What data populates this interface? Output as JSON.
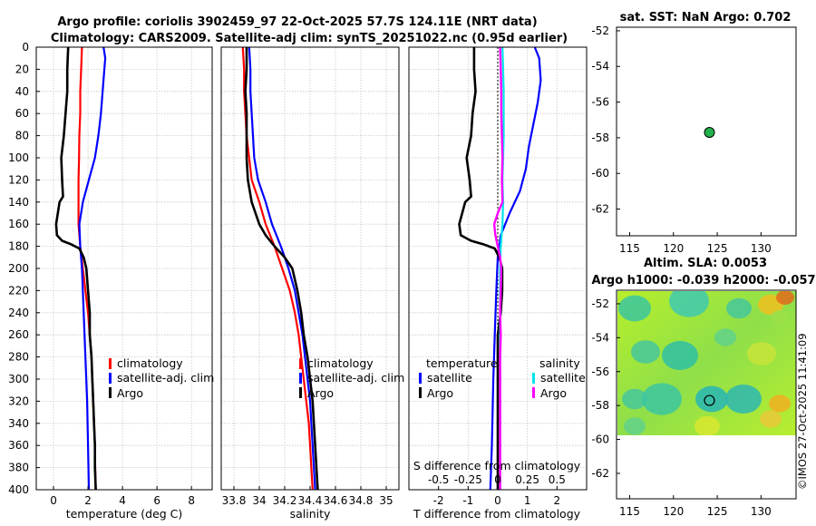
{
  "titles": {
    "line1": "Argo profile: coriolis 3902459_97 22-Oct-2025 57.7S 124.11E (NRT data)",
    "line2": "Climatology: CARS2009. Satellite-adj clim: synTS_20251022.nc (0.95d earlier)"
  },
  "colors": {
    "climatology": "#ff0000",
    "satellite": "#0000ff",
    "argo": "#000000",
    "satellite_s": "#00e5ee",
    "argo_s": "#ff00ff",
    "marker": "#22b14c"
  },
  "chart_data": [
    {
      "type": "line",
      "id": "temperature",
      "xlabel": "temperature (deg C)",
      "ylabel": "",
      "xlim": [
        -1,
        9.2
      ],
      "ylim": [
        400,
        0
      ],
      "xticks": [
        "0",
        "2",
        "4",
        "6",
        "8"
      ],
      "xtick_values": [
        0,
        2,
        4,
        6,
        8
      ],
      "yticks": [
        "0",
        "20",
        "40",
        "60",
        "80",
        "100",
        "120",
        "140",
        "160",
        "180",
        "200",
        "220",
        "240",
        "260",
        "280",
        "300",
        "320",
        "340",
        "360",
        "380",
        "400"
      ],
      "ytick_values": [
        0,
        20,
        40,
        60,
        80,
        100,
        120,
        140,
        160,
        180,
        200,
        220,
        240,
        260,
        280,
        300,
        320,
        340,
        360,
        380,
        400
      ],
      "legend": [
        "climatology",
        "satellite-adj. clim",
        "Argo"
      ],
      "series": [
        {
          "name": "climatology",
          "points": [
            [
              1.65,
              0
            ],
            [
              1.6,
              20
            ],
            [
              1.55,
              40
            ],
            [
              1.55,
              60
            ],
            [
              1.5,
              80
            ],
            [
              1.48,
              100
            ],
            [
              1.45,
              120
            ],
            [
              1.45,
              140
            ],
            [
              1.45,
              160
            ],
            [
              1.55,
              180
            ],
            [
              1.7,
              200
            ],
            [
              1.85,
              220
            ],
            [
              2.0,
              240
            ],
            [
              2.1,
              260
            ],
            [
              2.2,
              280
            ],
            [
              2.25,
              300
            ],
            [
              2.3,
              320
            ],
            [
              2.35,
              340
            ],
            [
              2.4,
              360
            ],
            [
              2.42,
              380
            ],
            [
              2.45,
              400
            ]
          ]
        },
        {
          "name": "satellite-adj. clim",
          "points": [
            [
              2.9,
              0
            ],
            [
              3.0,
              10
            ],
            [
              2.95,
              20
            ],
            [
              2.85,
              40
            ],
            [
              2.75,
              60
            ],
            [
              2.6,
              80
            ],
            [
              2.4,
              100
            ],
            [
              2.05,
              120
            ],
            [
              1.7,
              140
            ],
            [
              1.5,
              160
            ],
            [
              1.55,
              180
            ],
            [
              1.65,
              200
            ],
            [
              1.75,
              240
            ],
            [
              1.85,
              280
            ],
            [
              1.95,
              320
            ],
            [
              2.0,
              360
            ],
            [
              2.05,
              400
            ]
          ]
        },
        {
          "name": "Argo",
          "points": [
            [
              0.85,
              0
            ],
            [
              0.8,
              20
            ],
            [
              0.8,
              40
            ],
            [
              0.7,
              60
            ],
            [
              0.6,
              80
            ],
            [
              0.45,
              100
            ],
            [
              0.5,
              120
            ],
            [
              0.55,
              135
            ],
            [
              0.35,
              140
            ],
            [
              0.25,
              150
            ],
            [
              0.15,
              160
            ],
            [
              0.2,
              170
            ],
            [
              0.5,
              175
            ],
            [
              1.0,
              178
            ],
            [
              1.5,
              182
            ],
            [
              1.75,
              190
            ],
            [
              1.9,
              200
            ],
            [
              2.0,
              220
            ],
            [
              2.1,
              240
            ],
            [
              2.1,
              260
            ],
            [
              2.2,
              280
            ],
            [
              2.25,
              300
            ],
            [
              2.3,
              320
            ],
            [
              2.35,
              340
            ],
            [
              2.4,
              360
            ],
            [
              2.4,
              380
            ],
            [
              2.45,
              400
            ]
          ]
        }
      ]
    },
    {
      "type": "line",
      "id": "salinity",
      "xlabel": "salinity",
      "xlim": [
        33.7,
        35.1
      ],
      "ylim": [
        400,
        0
      ],
      "xticks": [
        "33.8",
        "34",
        "34.2",
        "34.4",
        "34.6",
        "34.8",
        "35"
      ],
      "xtick_values": [
        33.8,
        34.0,
        34.2,
        34.4,
        34.6,
        34.8,
        35.0
      ],
      "legend": [
        "climatology",
        "satellite-adj. clim",
        "Argo"
      ],
      "series": [
        {
          "name": "climatology",
          "points": [
            [
              33.87,
              0
            ],
            [
              33.88,
              20
            ],
            [
              33.88,
              40
            ],
            [
              33.89,
              60
            ],
            [
              33.9,
              80
            ],
            [
              33.92,
              100
            ],
            [
              33.94,
              120
            ],
            [
              34.0,
              140
            ],
            [
              34.05,
              160
            ],
            [
              34.12,
              180
            ],
            [
              34.18,
              200
            ],
            [
              34.24,
              220
            ],
            [
              34.28,
              240
            ],
            [
              34.31,
              260
            ],
            [
              34.33,
              280
            ],
            [
              34.35,
              300
            ],
            [
              34.37,
              320
            ],
            [
              34.39,
              340
            ],
            [
              34.4,
              360
            ],
            [
              34.41,
              380
            ],
            [
              34.42,
              400
            ]
          ]
        },
        {
          "name": "satellite-adj. clim",
          "points": [
            [
              33.92,
              0
            ],
            [
              33.93,
              20
            ],
            [
              33.93,
              40
            ],
            [
              33.94,
              60
            ],
            [
              33.95,
              80
            ],
            [
              33.96,
              100
            ],
            [
              33.99,
              120
            ],
            [
              34.05,
              140
            ],
            [
              34.1,
              160
            ],
            [
              34.17,
              180
            ],
            [
              34.23,
              200
            ],
            [
              34.28,
              220
            ],
            [
              34.31,
              240
            ],
            [
              34.34,
              260
            ],
            [
              34.36,
              280
            ],
            [
              34.38,
              300
            ],
            [
              34.4,
              320
            ],
            [
              34.41,
              340
            ],
            [
              34.42,
              360
            ],
            [
              34.43,
              380
            ],
            [
              34.44,
              400
            ]
          ]
        },
        {
          "name": "Argo",
          "points": [
            [
              33.9,
              0
            ],
            [
              33.9,
              20
            ],
            [
              33.89,
              40
            ],
            [
              33.9,
              60
            ],
            [
              33.9,
              80
            ],
            [
              33.9,
              100
            ],
            [
              33.91,
              120
            ],
            [
              33.94,
              140
            ],
            [
              34.0,
              160
            ],
            [
              34.05,
              170
            ],
            [
              34.12,
              180
            ],
            [
              34.2,
              190
            ],
            [
              34.26,
              200
            ],
            [
              34.3,
              220
            ],
            [
              34.33,
              240
            ],
            [
              34.35,
              260
            ],
            [
              34.38,
              280
            ],
            [
              34.4,
              300
            ],
            [
              34.42,
              320
            ],
            [
              34.43,
              340
            ],
            [
              34.44,
              360
            ],
            [
              34.45,
              380
            ],
            [
              34.46,
              400
            ]
          ]
        }
      ]
    },
    {
      "type": "line",
      "id": "difference",
      "xlabel": "T difference from climatology",
      "top_label": "S difference from climatology",
      "xlim": [
        -3,
        3
      ],
      "ylim": [
        400,
        0
      ],
      "xticks": [
        "-2",
        "-1",
        "0",
        "1",
        "2"
      ],
      "xtick_values": [
        -2,
        -1,
        0,
        1,
        2
      ],
      "top_xticks": [
        "-0.5",
        "-0.25",
        "0",
        "0.25",
        "0.5"
      ],
      "top_xtick_values": [
        -0.5,
        -0.25,
        0,
        0.25,
        0.5
      ],
      "legend_t_title": "temperature",
      "legend_s_title": "salinity",
      "legend": [
        "satellite",
        "Argo",
        "satellite",
        "Argo"
      ],
      "series": [
        {
          "name": "T satellite",
          "points": [
            [
              1.25,
              0
            ],
            [
              1.4,
              10
            ],
            [
              1.45,
              30
            ],
            [
              1.35,
              50
            ],
            [
              1.2,
              70
            ],
            [
              1.05,
              90
            ],
            [
              0.95,
              110
            ],
            [
              0.75,
              130
            ],
            [
              0.4,
              150
            ],
            [
              0.1,
              170
            ],
            [
              0.0,
              190
            ],
            [
              -0.05,
              220
            ],
            [
              -0.1,
              260
            ],
            [
              -0.15,
              300
            ],
            [
              -0.2,
              360
            ],
            [
              -0.25,
              400
            ]
          ]
        },
        {
          "name": "T Argo",
          "points": [
            [
              -0.8,
              0
            ],
            [
              -0.8,
              20
            ],
            [
              -0.75,
              40
            ],
            [
              -0.85,
              60
            ],
            [
              -0.9,
              80
            ],
            [
              -1.05,
              100
            ],
            [
              -0.95,
              120
            ],
            [
              -0.9,
              135
            ],
            [
              -1.1,
              140
            ],
            [
              -1.2,
              150
            ],
            [
              -1.3,
              160
            ],
            [
              -1.25,
              170
            ],
            [
              -0.9,
              175
            ],
            [
              -0.5,
              178
            ],
            [
              -0.1,
              182
            ],
            [
              0.05,
              190
            ],
            [
              0.15,
              200
            ],
            [
              0.15,
              220
            ],
            [
              0.1,
              240
            ],
            [
              0.0,
              260
            ],
            [
              0.0,
              280
            ],
            [
              0.0,
              300
            ],
            [
              0.0,
              320
            ],
            [
              0.0,
              340
            ],
            [
              0.0,
              360
            ],
            [
              0.0,
              380
            ],
            [
              0.0,
              400
            ]
          ]
        },
        {
          "name": "S satellite",
          "points": [
            [
              0.04,
              0
            ],
            [
              0.045,
              20
            ],
            [
              0.05,
              40
            ],
            [
              0.05,
              60
            ],
            [
              0.05,
              80
            ],
            [
              0.045,
              100
            ],
            [
              0.04,
              120
            ],
            [
              0.045,
              140
            ],
            [
              0.04,
              160
            ],
            [
              0.025,
              180
            ],
            [
              0.02,
              200
            ],
            [
              0.02,
              240
            ],
            [
              0.02,
              280
            ],
            [
              0.02,
              320
            ],
            [
              0.02,
              360
            ],
            [
              0.02,
              400
            ]
          ]
        },
        {
          "name": "S Argo",
          "points": [
            [
              0.02,
              0
            ],
            [
              0.025,
              20
            ],
            [
              0.03,
              40
            ],
            [
              0.03,
              60
            ],
            [
              0.035,
              80
            ],
            [
              0.04,
              100
            ],
            [
              0.035,
              120
            ],
            [
              0.04,
              140
            ],
            [
              0.0,
              150
            ],
            [
              -0.03,
              160
            ],
            [
              -0.02,
              170
            ],
            [
              0.0,
              180
            ],
            [
              0.02,
              190
            ],
            [
              0.03,
              200
            ],
            [
              0.025,
              220
            ],
            [
              0.02,
              240
            ],
            [
              0.025,
              260
            ],
            [
              0.02,
              280
            ],
            [
              0.02,
              300
            ],
            [
              0.02,
              320
            ],
            [
              0.02,
              340
            ],
            [
              0.02,
              360
            ],
            [
              0.02,
              380
            ],
            [
              0.02,
              400
            ]
          ]
        }
      ]
    },
    {
      "type": "scatter",
      "id": "sst_map",
      "title": "sat. SST: NaN Argo: 0.702",
      "xlim": [
        113.5,
        134
      ],
      "ylim": [
        -63.5,
        -51.8
      ],
      "xticks": [
        "115",
        "120",
        "125",
        "130"
      ],
      "xtick_values": [
        115,
        120,
        125,
        130
      ],
      "yticks": [
        "-52",
        "-54",
        "-56",
        "-58",
        "-60",
        "-62"
      ],
      "ytick_values": [
        -52,
        -54,
        -56,
        -58,
        -60,
        -62
      ],
      "points": [
        [
          124.11,
          -57.7
        ]
      ]
    },
    {
      "type": "heatmap",
      "id": "sla_map",
      "title1": "Altim. SLA: 0.0053",
      "title2": "Argo h1000: -0.039 h2000: -0.057",
      "xlim": [
        113.5,
        134
      ],
      "ylim": [
        -63.5,
        -51.2
      ],
      "xticks": [
        "115",
        "120",
        "125",
        "130"
      ],
      "xtick_values": [
        115,
        120,
        125,
        130
      ],
      "yticks": [
        "-52",
        "-54",
        "-56",
        "-58",
        "-60",
        "-62"
      ],
      "ytick_values": [
        -52,
        -54,
        -56,
        -58,
        -60,
        -62
      ],
      "data_extent": {
        "lon": [
          113.5,
          134
        ],
        "lat": [
          -60,
          -51.2
        ]
      },
      "points": [
        [
          124.11,
          -57.7
        ]
      ]
    }
  ],
  "credit": "©IMOS 27-Oct-2025 11:41:09"
}
